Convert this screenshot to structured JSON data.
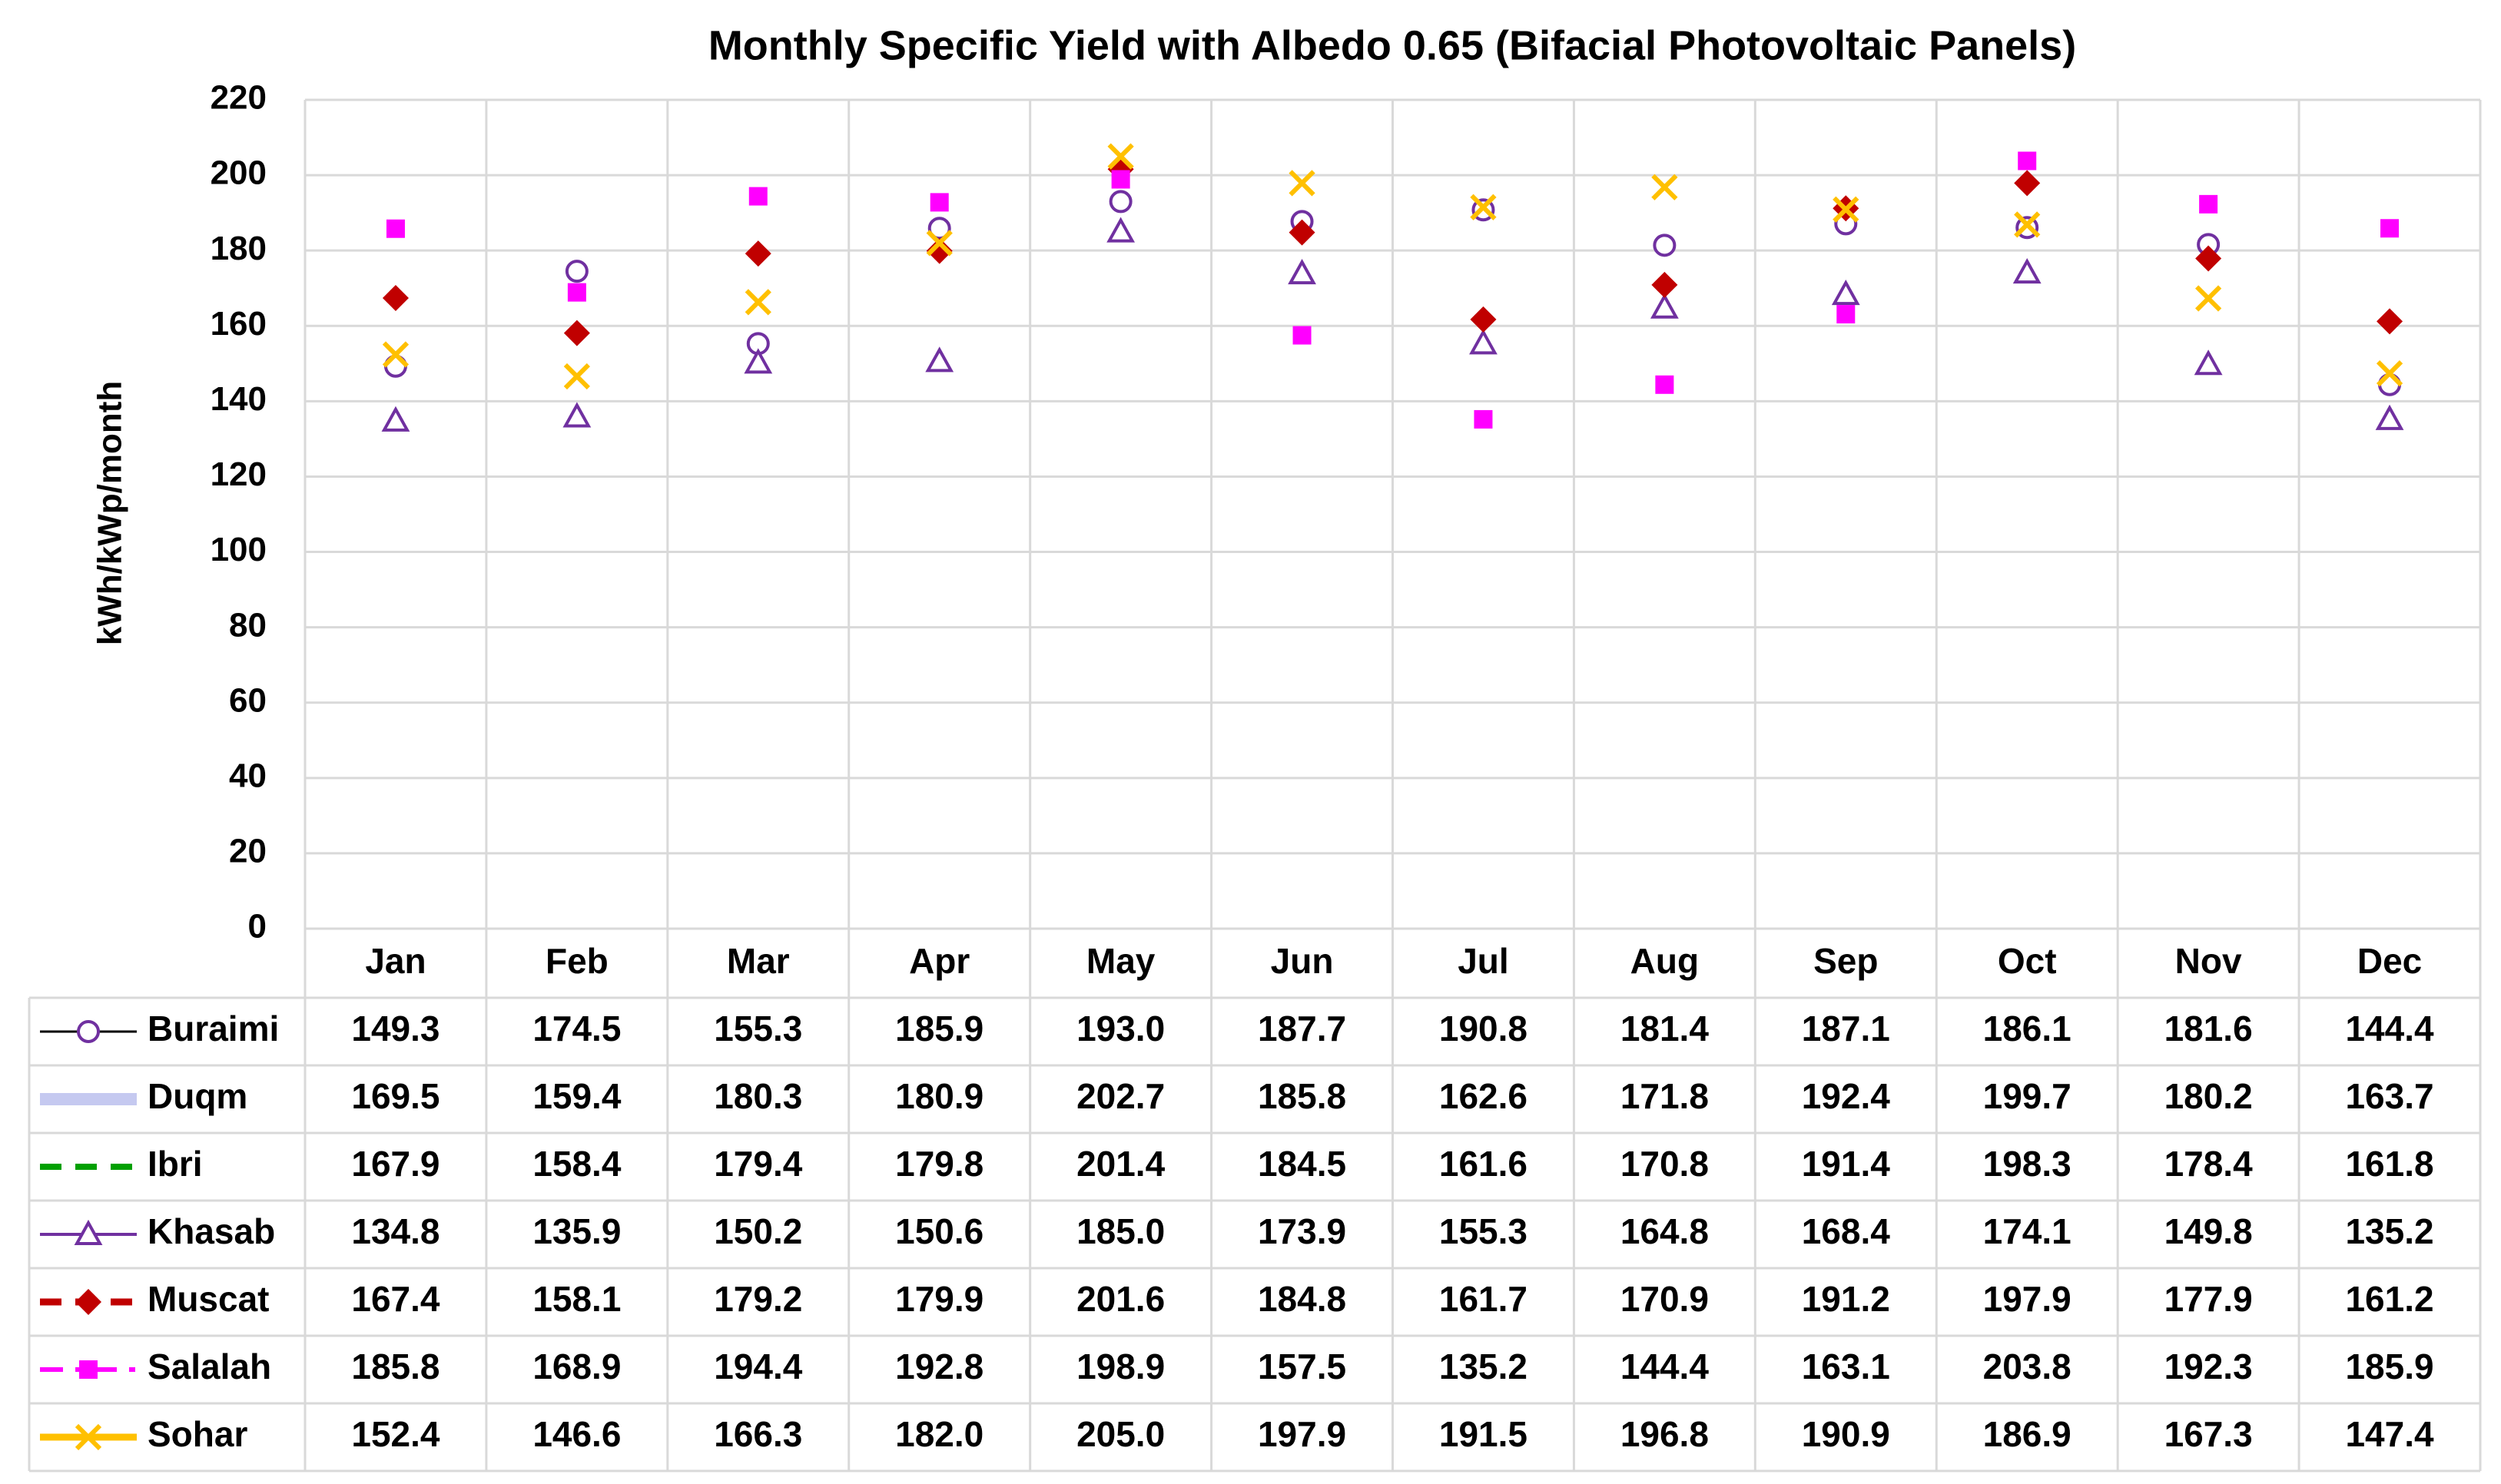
{
  "chart_data": {
    "type": "line",
    "title": "Monthly Specific Yield with Albedo 0.65 (Bifacial Photovoltaic Panels)",
    "y_label": "kWh/kWp/month",
    "categories": [
      "Jan",
      "Feb",
      "Mar",
      "Apr",
      "May",
      "Jun",
      "Jul",
      "Aug",
      "Sep",
      "Oct",
      "Nov",
      "Dec"
    ],
    "ylim": [
      0,
      220
    ],
    "yticks": [
      0,
      20,
      40,
      60,
      80,
      100,
      120,
      140,
      160,
      180,
      200,
      220
    ],
    "grid": true,
    "series": [
      {
        "name": "Buraimi",
        "color": "#000000",
        "marker_color": "#7030a0",
        "marker": "circle",
        "line_style": "solid",
        "line_width": 3,
        "values": [
          149.3,
          174.5,
          155.3,
          185.9,
          193.0,
          187.7,
          190.8,
          181.4,
          187.1,
          186.1,
          181.6,
          144.4
        ],
        "value_labels": [
          "149.3",
          "174.5",
          "155.3",
          "185.9",
          "193.0",
          "187.7",
          "190.8",
          "181.4",
          "187.1",
          "186.1",
          "181.6",
          "144.4"
        ]
      },
      {
        "name": "Duqm",
        "color": "#c5c9f0",
        "marker": "none",
        "line_style": "solid",
        "line_width": 16,
        "values": [
          169.5,
          159.4,
          180.3,
          180.9,
          202.7,
          185.8,
          162.6,
          171.8,
          192.4,
          199.7,
          180.2,
          163.7
        ],
        "value_labels": [
          "169.5",
          "159.4",
          "180.3",
          "180.9",
          "202.7",
          "185.8",
          "162.6",
          "171.8",
          "192.4",
          "199.7",
          "180.2",
          "163.7"
        ]
      },
      {
        "name": "Ibri",
        "color": "#00a000",
        "marker": "none",
        "line_style": "dash",
        "line_width": 8,
        "values": [
          167.9,
          158.4,
          179.4,
          179.8,
          201.4,
          184.5,
          161.6,
          170.8,
          191.4,
          198.3,
          178.4,
          161.8
        ],
        "value_labels": [
          "167.9",
          "158.4",
          "179.4",
          "179.8",
          "201.4",
          "184.5",
          "161.6",
          "170.8",
          "191.4",
          "198.3",
          "178.4",
          "161.8"
        ]
      },
      {
        "name": "Khasab",
        "color": "#7030a0",
        "marker_color": "#7030a0",
        "marker": "triangle",
        "line_style": "solid",
        "line_width": 4,
        "values": [
          134.8,
          135.9,
          150.2,
          150.6,
          185.0,
          173.9,
          155.3,
          164.8,
          168.4,
          174.1,
          149.8,
          135.2
        ],
        "value_labels": [
          "134.8",
          "135.9",
          "150.2",
          "150.6",
          "185.0",
          "173.9",
          "155.3",
          "164.8",
          "168.4",
          "174.1",
          "149.8",
          "135.2"
        ]
      },
      {
        "name": "Muscat",
        "color": "#c00000",
        "marker_color": "#c00000",
        "marker": "diamond",
        "line_style": "dash",
        "line_width": 9,
        "values": [
          167.4,
          158.1,
          179.2,
          179.9,
          201.6,
          184.8,
          161.7,
          170.9,
          191.2,
          197.9,
          177.9,
          161.2
        ],
        "value_labels": [
          "167.4",
          "158.1",
          "179.2",
          "179.9",
          "201.6",
          "184.8",
          "161.7",
          "170.9",
          "191.2",
          "197.9",
          "177.9",
          "161.2"
        ]
      },
      {
        "name": "Salalah",
        "color": "#ff00ff",
        "marker_color": "#ff00ff",
        "marker": "square",
        "line_style": "dashdot",
        "line_width": 6,
        "values": [
          185.8,
          168.9,
          194.4,
          192.8,
          198.9,
          157.5,
          135.2,
          144.4,
          163.1,
          203.8,
          192.3,
          185.9
        ],
        "value_labels": [
          "185.8",
          "168.9",
          "194.4",
          "192.8",
          "198.9",
          "157.5",
          "135.2",
          "144.4",
          "163.1",
          "203.8",
          "192.3",
          "185.9"
        ]
      },
      {
        "name": "Sohar",
        "color": "#ffc000",
        "marker_color": "#ffc000",
        "marker": "x",
        "line_style": "solid",
        "line_width": 9,
        "values": [
          152.4,
          146.6,
          166.3,
          182.0,
          205.0,
          197.9,
          191.5,
          196.8,
          190.9,
          186.9,
          167.3,
          147.4
        ],
        "value_labels": [
          "152.4",
          "146.6",
          "166.3",
          "182.0",
          "205.0",
          "197.9",
          "191.5",
          "196.8",
          "190.9",
          "186.9",
          "167.3",
          "147.4"
        ]
      }
    ]
  }
}
